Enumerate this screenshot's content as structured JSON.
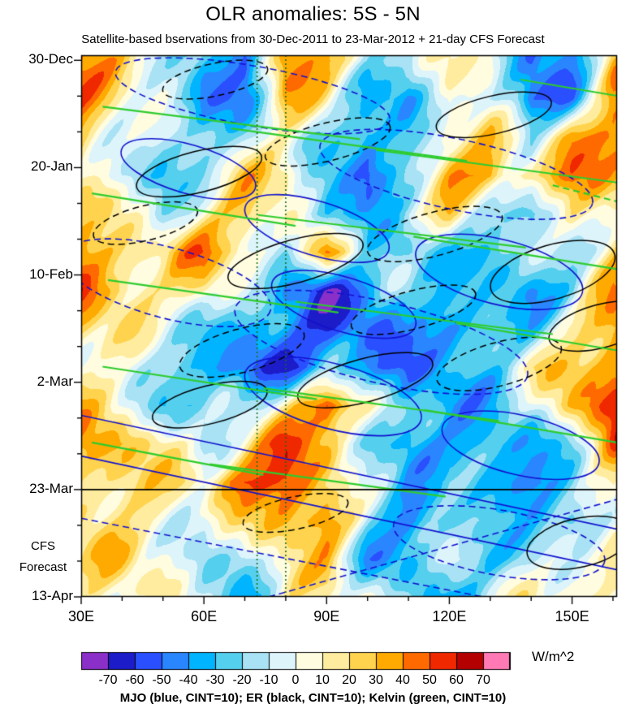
{
  "header": {
    "title": "OLR anomalies: 5S - 5N",
    "subtitle": "Satellite-based bservations from 30-Dec-2011 to 23-Mar-2012 + 21-day CFS Forecast"
  },
  "chart_data": {
    "type": "heatmap",
    "title": "OLR anomalies: 5S - 5N",
    "subtitle": "Satellite-based bservations from 30-Dec-2011 to 23-Mar-2012 + 21-day CFS Forecast",
    "caption": "MJO (blue, CINT=10); ER (black, CINT=10); Kelvin (green, CINT=10)",
    "x": {
      "range": [
        30,
        161
      ],
      "minor_step": 10,
      "ticks": [
        {
          "label": "30E",
          "lon": 30
        },
        {
          "label": "60E",
          "lon": 60
        },
        {
          "label": "90E",
          "lon": 90
        },
        {
          "label": "120E",
          "lon": 120
        },
        {
          "label": "150E",
          "lon": 150
        }
      ]
    },
    "y": {
      "range": [
        -1,
        105
      ],
      "minor_step": 7,
      "ticks": [
        {
          "label": "30-Dec",
          "day": 0
        },
        {
          "label": "20-Jan",
          "day": 21
        },
        {
          "label": "10-Feb",
          "day": 42
        },
        {
          "label": "2-Mar",
          "day": 63
        },
        {
          "label": "23-Mar",
          "day": 84
        },
        {
          "label": "13-Apr",
          "day": 105
        }
      ]
    },
    "forecast_divider_day": 84,
    "forecast_label_lines": [
      "CFS",
      "Forecast"
    ],
    "vertical_guides_lon": [
      73,
      80
    ],
    "grid": {
      "lons": [
        30,
        40,
        50,
        60,
        70,
        80,
        90,
        100,
        110,
        120,
        130,
        140,
        150,
        160
      ],
      "days": [
        0,
        7.5,
        15,
        22.5,
        30,
        37.5,
        45,
        52.5,
        60,
        67.5,
        75,
        82.5,
        90,
        97.5,
        105
      ],
      "values": [
        [
          35,
          20,
          5,
          -35,
          -55,
          45,
          30,
          0,
          -25,
          10,
          15,
          -50,
          -45,
          25
        ],
        [
          45,
          10,
          -10,
          -45,
          -40,
          25,
          10,
          -30,
          -40,
          5,
          -10,
          -55,
          -30,
          35
        ],
        [
          30,
          5,
          -20,
          -25,
          -10,
          5,
          -15,
          -50,
          -30,
          20,
          25,
          -15,
          30,
          45
        ],
        [
          15,
          -15,
          -25,
          -10,
          15,
          20,
          -25,
          -55,
          -20,
          25,
          35,
          20,
          40,
          30
        ],
        [
          25,
          5,
          -15,
          10,
          30,
          10,
          -40,
          -35,
          0,
          15,
          -20,
          -30,
          20,
          15
        ],
        [
          40,
          25,
          20,
          35,
          20,
          -15,
          40,
          -20,
          -35,
          -15,
          -30,
          -20,
          -15,
          20
        ],
        [
          45,
          30,
          10,
          20,
          -10,
          -50,
          -55,
          -40,
          -20,
          -35,
          -25,
          -35,
          -20,
          30
        ],
        [
          30,
          10,
          -5,
          -20,
          -35,
          -45,
          -60,
          -55,
          -30,
          -45,
          -40,
          -20,
          10,
          40
        ],
        [
          15,
          -5,
          -15,
          -40,
          -55,
          -50,
          -35,
          -45,
          -55,
          -30,
          -20,
          5,
          25,
          50
        ],
        [
          20,
          10,
          -20,
          -30,
          -15,
          10,
          55,
          20,
          -35,
          -45,
          -25,
          -10,
          30,
          55
        ],
        [
          35,
          30,
          15,
          -10,
          20,
          45,
          30,
          -15,
          -40,
          -30,
          -45,
          -35,
          -10,
          40
        ],
        [
          30,
          25,
          10,
          15,
          50,
          60,
          25,
          -20,
          -30,
          -15,
          -40,
          -50,
          -25,
          15
        ],
        [
          20,
          15,
          10,
          -10,
          15,
          40,
          45,
          -15,
          -45,
          -30,
          -10,
          -25,
          -40,
          5
        ],
        [
          15,
          20,
          10,
          -20,
          -15,
          10,
          20,
          -30,
          -35,
          -10,
          -30,
          -20,
          10,
          15
        ],
        [
          10,
          15,
          5,
          -15,
          -25,
          5,
          10,
          -5,
          -20,
          -30,
          -10,
          5,
          15,
          10
        ]
      ]
    },
    "colorbar": {
      "units": "W/m^2",
      "levels": [
        -70,
        -60,
        -50,
        -40,
        -30,
        -20,
        -10,
        0,
        10,
        20,
        30,
        40,
        50,
        60,
        70
      ],
      "tick_labels": [
        "-70",
        "-60",
        "-50",
        "-40",
        "-30",
        "-20",
        "-10",
        "0",
        "10",
        "20",
        "30",
        "40",
        "50",
        "60",
        "70"
      ],
      "colors": [
        "#8b2fc9",
        "#1c1cc8",
        "#2a4fff",
        "#2a86ff",
        "#00b4ff",
        "#55cfee",
        "#a8e2f4",
        "#def4fb",
        "#fffce0",
        "#ffec9e",
        "#ffd34d",
        "#ffaa00",
        "#ff6a00",
        "#f02800",
        "#b40000",
        "#ff7ab4"
      ]
    },
    "overlays": {
      "mjo": {
        "name": "MJO",
        "color": "#1212cf",
        "shapes": [
          {
            "kind": "ellipse",
            "cx": 0.2,
            "cy": 0.21,
            "rx": 0.13,
            "ry": 0.045,
            "angle": 16,
            "dash": false
          },
          {
            "kind": "ellipse",
            "cx": 0.44,
            "cy": 0.32,
            "rx": 0.14,
            "ry": 0.05,
            "angle": 17,
            "dash": false
          },
          {
            "kind": "ellipse",
            "cx": 0.49,
            "cy": 0.46,
            "rx": 0.14,
            "ry": 0.05,
            "angle": 17,
            "dash": false
          },
          {
            "kind": "ellipse",
            "cx": 0.78,
            "cy": 0.4,
            "rx": 0.16,
            "ry": 0.06,
            "angle": 14,
            "dash": false
          },
          {
            "kind": "ellipse",
            "cx": 0.47,
            "cy": 0.63,
            "rx": 0.17,
            "ry": 0.06,
            "angle": 15,
            "dash": false
          },
          {
            "kind": "ellipse",
            "cx": 0.82,
            "cy": 0.72,
            "rx": 0.15,
            "ry": 0.055,
            "angle": 13,
            "dash": false
          },
          {
            "kind": "line",
            "x1": 0,
            "y1": 0.74,
            "x2": 1,
            "y2": 0.95,
            "dash": false
          },
          {
            "kind": "line",
            "x1": 0,
            "y1": 0.665,
            "x2": 1,
            "y2": 0.875,
            "dash": false
          },
          {
            "kind": "ellipse",
            "cx": 0.32,
            "cy": 0.075,
            "rx": 0.26,
            "ry": 0.055,
            "angle": 10,
            "dash": true
          },
          {
            "kind": "ellipse",
            "cx": 0.7,
            "cy": 0.22,
            "rx": 0.26,
            "ry": 0.065,
            "angle": 12,
            "dash": true
          },
          {
            "kind": "ellipse",
            "cx": 0.16,
            "cy": 0.42,
            "rx": 0.2,
            "ry": 0.065,
            "angle": 15,
            "dash": true
          },
          {
            "kind": "ellipse",
            "cx": 0.56,
            "cy": 0.53,
            "rx": 0.28,
            "ry": 0.075,
            "angle": 13,
            "dash": true
          },
          {
            "kind": "ellipse",
            "cx": 0.78,
            "cy": 0.9,
            "rx": 0.2,
            "ry": 0.06,
            "angle": 10,
            "dash": true
          },
          {
            "kind": "line",
            "x1": 0,
            "y1": 0.855,
            "x2": 0.75,
            "y2": 1.0,
            "dash": true
          },
          {
            "kind": "line",
            "x1": 0.35,
            "y1": 1.0,
            "x2": 1,
            "y2": 0.82,
            "dash": true
          }
        ]
      },
      "er": {
        "name": "ER",
        "color": "#000000",
        "shapes": [
          {
            "kind": "ellipse",
            "cx": 0.25,
            "cy": 0.045,
            "rx": 0.1,
            "ry": 0.03,
            "angle": -12,
            "dash": true
          },
          {
            "kind": "ellipse",
            "cx": 0.22,
            "cy": 0.215,
            "rx": 0.12,
            "ry": 0.038,
            "angle": -14,
            "dash": false
          },
          {
            "kind": "ellipse",
            "cx": 0.46,
            "cy": 0.16,
            "rx": 0.12,
            "ry": 0.035,
            "angle": -14,
            "dash": true
          },
          {
            "kind": "ellipse",
            "cx": 0.77,
            "cy": 0.11,
            "rx": 0.11,
            "ry": 0.035,
            "angle": -13,
            "dash": false
          },
          {
            "kind": "ellipse",
            "cx": 0.12,
            "cy": 0.31,
            "rx": 0.1,
            "ry": 0.032,
            "angle": -14,
            "dash": true
          },
          {
            "kind": "ellipse",
            "cx": 0.4,
            "cy": 0.38,
            "rx": 0.13,
            "ry": 0.04,
            "angle": -15,
            "dash": false
          },
          {
            "kind": "ellipse",
            "cx": 0.66,
            "cy": 0.33,
            "rx": 0.13,
            "ry": 0.04,
            "angle": -15,
            "dash": true
          },
          {
            "kind": "ellipse",
            "cx": 0.88,
            "cy": 0.4,
            "rx": 0.12,
            "ry": 0.05,
            "angle": -16,
            "dash": false
          },
          {
            "kind": "ellipse",
            "cx": 0.3,
            "cy": 0.545,
            "rx": 0.12,
            "ry": 0.04,
            "angle": -15,
            "dash": true
          },
          {
            "kind": "ellipse",
            "cx": 0.53,
            "cy": 0.6,
            "rx": 0.13,
            "ry": 0.04,
            "angle": -15,
            "dash": false
          },
          {
            "kind": "ellipse",
            "cx": 0.24,
            "cy": 0.645,
            "rx": 0.11,
            "ry": 0.035,
            "angle": -14,
            "dash": false
          },
          {
            "kind": "ellipse",
            "cx": 0.78,
            "cy": 0.57,
            "rx": 0.12,
            "ry": 0.04,
            "angle": -15,
            "dash": true
          },
          {
            "kind": "ellipse",
            "cx": 0.62,
            "cy": 0.47,
            "rx": 0.12,
            "ry": 0.035,
            "angle": -15,
            "dash": true
          },
          {
            "kind": "ellipse",
            "cx": 0.4,
            "cy": 0.845,
            "rx": 0.1,
            "ry": 0.03,
            "angle": -12,
            "dash": true
          },
          {
            "kind": "ellipse",
            "cx": 0.93,
            "cy": 0.9,
            "rx": 0.1,
            "ry": 0.045,
            "angle": -13,
            "dash": false
          },
          {
            "kind": "ellipse",
            "cx": 0.97,
            "cy": 0.5,
            "rx": 0.1,
            "ry": 0.04,
            "angle": -15,
            "dash": false
          }
        ]
      },
      "kelvin": {
        "name": "Kelvin",
        "color": "#2ecc2e",
        "shapes": [
          {
            "kind": "line",
            "x1": 0.04,
            "y1": 0.095,
            "x2": 0.52,
            "y2": 0.155,
            "dash": false
          },
          {
            "kind": "line",
            "x1": 0.28,
            "y1": 0.135,
            "x2": 0.72,
            "y2": 0.195,
            "dash": false
          },
          {
            "kind": "line",
            "x1": 0.55,
            "y1": 0.175,
            "x2": 1,
            "y2": 0.235,
            "dash": false
          },
          {
            "kind": "line",
            "x1": 0.02,
            "y1": 0.255,
            "x2": 0.4,
            "y2": 0.315,
            "dash": false
          },
          {
            "kind": "line",
            "x1": 0.33,
            "y1": 0.295,
            "x2": 0.83,
            "y2": 0.355,
            "dash": false
          },
          {
            "kind": "line",
            "x1": 0.62,
            "y1": 0.335,
            "x2": 1,
            "y2": 0.395,
            "dash": false
          },
          {
            "kind": "line",
            "x1": 0.05,
            "y1": 0.415,
            "x2": 0.48,
            "y2": 0.475,
            "dash": false
          },
          {
            "kind": "line",
            "x1": 0.4,
            "y1": 0.455,
            "x2": 0.88,
            "y2": 0.515,
            "dash": false
          },
          {
            "kind": "line",
            "x1": 0.7,
            "y1": 0.495,
            "x2": 1,
            "y2": 0.545,
            "dash": false
          },
          {
            "kind": "line",
            "x1": 0.04,
            "y1": 0.575,
            "x2": 0.44,
            "y2": 0.635,
            "dash": false
          },
          {
            "kind": "line",
            "x1": 0.34,
            "y1": 0.615,
            "x2": 0.78,
            "y2": 0.675,
            "dash": false
          },
          {
            "kind": "line",
            "x1": 0.64,
            "y1": 0.655,
            "x2": 1,
            "y2": 0.715,
            "dash": false
          },
          {
            "kind": "line",
            "x1": 0.02,
            "y1": 0.715,
            "x2": 0.34,
            "y2": 0.775,
            "dash": false
          },
          {
            "kind": "line",
            "x1": 0.82,
            "y1": 0.045,
            "x2": 1,
            "y2": 0.075,
            "dash": false
          },
          {
            "kind": "line",
            "x1": 0.24,
            "y1": 0.755,
            "x2": 0.68,
            "y2": 0.815,
            "dash": false
          },
          {
            "kind": "line",
            "x1": 0.88,
            "y1": 0.24,
            "x2": 1,
            "y2": 0.27,
            "dash": true
          }
        ]
      },
      "guide_color": "#1a6b1a"
    },
    "noise_amplitude": 9
  }
}
